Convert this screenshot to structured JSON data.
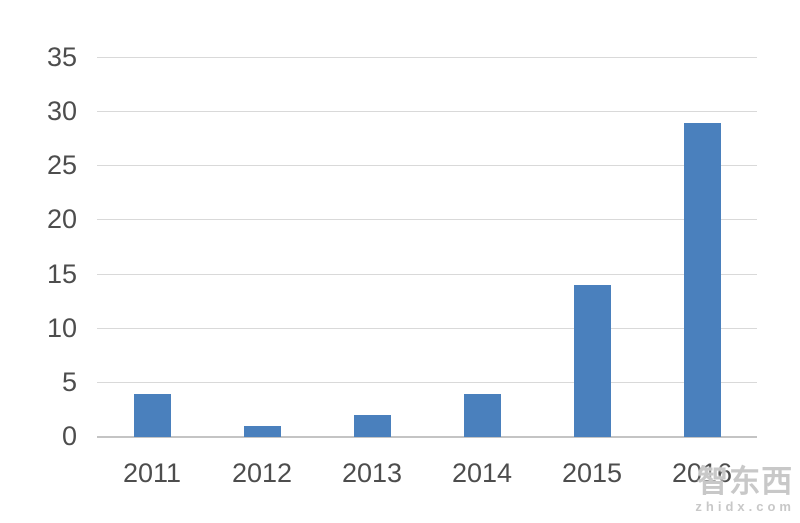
{
  "chart_data": {
    "type": "bar",
    "title": "",
    "xlabel": "",
    "ylabel": "",
    "categories": [
      "2011",
      "2012",
      "2013",
      "2014",
      "2015",
      "2016"
    ],
    "values": [
      4,
      1,
      2,
      4,
      14,
      29
    ],
    "ylim": [
      0,
      35
    ],
    "yticks": [
      0,
      5,
      10,
      15,
      20,
      25,
      30,
      35
    ],
    "grid": true,
    "legend": "none",
    "bar_color": "#4a80bd",
    "gridline_color": "#d9d9d9",
    "baseline_color": "#c4c4c4",
    "tick_label_color": "#4d4d4d"
  },
  "watermark": {
    "logo_text": "智东西",
    "site_text": "zhidx.com",
    "color": "#c8c8c8"
  }
}
